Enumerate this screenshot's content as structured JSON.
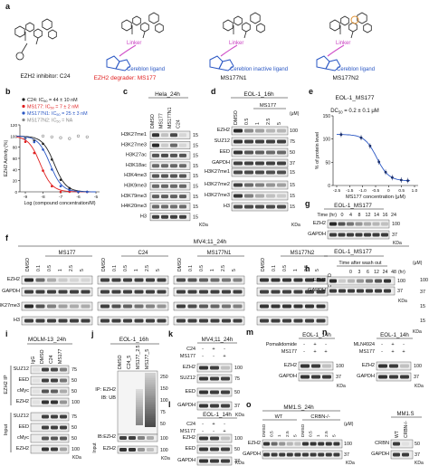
{
  "panels": {
    "a": {
      "letter": "a",
      "labels": {
        "c24": "EZH2 inhibitor: C24",
        "ms177": "EZH2 degrader: MS177",
        "ms177n1": "MS177N1",
        "ms177n2": "MS177N2"
      },
      "linker": "Linker",
      "cereblon": "Cereblon ligand",
      "cereblon_inactive": "Cereblon inactive ligand"
    },
    "b": {
      "letter": "b",
      "legend": [
        {
          "name": "C24",
          "text": "C24: IC",
          "tail": " = 44 ± 10 nM",
          "color": "#222222"
        },
        {
          "name": "MS177",
          "text": "MS177: IC",
          "tail": " = 7 ± 2 nM",
          "color": "#e02020"
        },
        {
          "name": "MS177N1",
          "text": "MS177N1: IC",
          "tail": " = 25 ± 3 nM",
          "color": "#2a57c4"
        },
        {
          "name": "MS177N2",
          "text": "MS177N2: IC",
          "tail": " = NA",
          "color": "#888888"
        }
      ],
      "sub50": "50",
      "ylabel": "EZH2 Activity (%)",
      "xlabel": "Log (compound concentration/M)",
      "yticks": [
        "0",
        "20",
        "40",
        "60",
        "80",
        "100",
        "120"
      ],
      "xticks": [
        "-9",
        "-8",
        "-7",
        "-6",
        "-5"
      ]
    },
    "c": {
      "letter": "c",
      "title": "Hela_24h",
      "lanes": [
        "DMSO",
        "MS177",
        "MS177N1",
        "C24"
      ],
      "rows": [
        "H3K27me1",
        "H3K27me3",
        "H3K27ac",
        "H3K18ac",
        "H3K4me3",
        "H3K9me3",
        "H3K79me3",
        "H4K20me3",
        "H3"
      ],
      "size": "15"
    },
    "d": {
      "letter": "d",
      "title": "EOL-1_16h",
      "group": "MS177",
      "unit": "(μM)",
      "lanes": [
        "DMSO",
        "0.5",
        "1",
        "2.5",
        "5"
      ],
      "rows": [
        "EZH2",
        "SUZ12",
        "EED",
        "GAPDH",
        "H3K27me1",
        "H3K27me2",
        "H3K27me3",
        "H3"
      ],
      "mw": [
        "100",
        "75",
        "50",
        "37",
        "15",
        "15",
        "15",
        "15"
      ]
    },
    "e": {
      "letter": "e",
      "title": "EOL-1_MS177",
      "dc50": "DC",
      "dc50sub": "50",
      "dc50tail": " = 0.2 ± 0.1 μM",
      "ylabel": "% of protein level",
      "xlabel": "MS177 concentration (μM)",
      "yticks": [
        "0",
        "50",
        "100",
        "150"
      ],
      "xticks": [
        "-2.5",
        "-1.5",
        "-1.0",
        "-0.5",
        "0",
        "0.5",
        "1.0"
      ]
    },
    "f": {
      "letter": "f",
      "title": "MV4;11_24h",
      "unit": "(μM)",
      "groups": [
        "MS177",
        "C24",
        "MS177N1",
        "MS177N2"
      ],
      "lanes": [
        "DMSO",
        "0.1",
        "0.5",
        "1",
        "2.5",
        "5"
      ],
      "rows": [
        "EZH2",
        "GAPDH",
        "H3K27me3",
        "H3"
      ],
      "mw": [
        "100",
        "37",
        "15",
        "15"
      ]
    },
    "g": {
      "letter": "g",
      "title": "EOL-1_MS177",
      "timelabel": "Time (hr)",
      "times": [
        "0",
        "4",
        "8",
        "12",
        "14",
        "16",
        "24"
      ],
      "rows": [
        "EZH2",
        "GAPDH"
      ],
      "mw": [
        "100",
        "37"
      ]
    },
    "h": {
      "letter": "h",
      "title": "EOL-1_MS177",
      "timelabel": "Time after wash out",
      "times": [
        "DMSO",
        "0",
        "3",
        "6",
        "12",
        "24",
        "48"
      ],
      "unit": "(hr)",
      "rows": [
        "EZH2",
        "GAPDH"
      ],
      "mw": [
        "100",
        "37"
      ]
    },
    "i": {
      "letter": "i",
      "title": "MOLM-13_24h",
      "lanes": [
        "IgG",
        "DMSO",
        "C24",
        "MS177"
      ],
      "rows": [
        "SUZ12",
        "EED",
        "cMyc",
        "EZH2",
        "SUZ12",
        "EED",
        "cMyc",
        "EZH2"
      ],
      "mw": [
        "75",
        "50",
        "50",
        "100",
        "75",
        "50",
        "50",
        "100"
      ],
      "ip": "EZH2 IP",
      "input": "Input"
    },
    "j": {
      "letter": "j",
      "title": "EOL-1_16h",
      "lanes": [
        "DMSO",
        "C24_5",
        "MS177_2.5",
        "MS177_5"
      ],
      "ip": "IP: EZH2",
      "ib": "IB: UB",
      "ibezh2": "IB:EZH2",
      "ezh2": "EZH2",
      "input": "Input",
      "mw": [
        "250",
        "150",
        "100",
        "75",
        "50",
        "100",
        "100"
      ]
    },
    "k": {
      "letter": "k",
      "title": "MV4;11_24h",
      "conds": [
        [
          "C24",
          "-",
          "+",
          "-"
        ],
        [
          "MS177",
          "-",
          "-",
          "+"
        ]
      ],
      "rows": [
        "EZH2",
        "SUZ12",
        "EED",
        "GAPDH"
      ],
      "mw": [
        "100",
        "75",
        "50",
        "37"
      ]
    },
    "l": {
      "letter": "l",
      "title": "EOL-1_14h",
      "conds": [
        [
          "C24",
          "-",
          "+",
          "-"
        ],
        [
          "MS177",
          "-",
          "-",
          "+"
        ]
      ],
      "rows": [
        "EZH2",
        "EED",
        "GAPDH"
      ],
      "mw": [
        "100",
        "50",
        "37"
      ]
    },
    "m": {
      "letter": "m",
      "title": "EOL-1_14h",
      "conds": [
        [
          "Pomalidomide",
          "-",
          "+",
          "-"
        ],
        [
          "MS177",
          "-",
          "+",
          "+"
        ]
      ],
      "rows": [
        "EZH2",
        "GAPDH"
      ],
      "mw": [
        "100",
        "37"
      ]
    },
    "n": {
      "letter": "n",
      "title": "EOL-1_14h",
      "conds": [
        [
          "MLN4924",
          "-",
          "+",
          "-"
        ],
        [
          "MS177",
          "-",
          "+",
          "+"
        ]
      ],
      "rows": [
        "EZH2",
        "GAPDH"
      ],
      "mw": [
        "100",
        "37"
      ]
    },
    "o": {
      "letter": "o",
      "title": "MM1.S_24h",
      "groups": [
        "WT",
        "CRBN-/-"
      ],
      "unit": "(μM)",
      "lanes": [
        "DMSO",
        "0.5",
        "1",
        "2.5",
        "5",
        "DMSO",
        "0.5",
        "1",
        "2.5",
        "5"
      ],
      "rows": [
        "EZH2",
        "GAPDH"
      ],
      "mw": [
        "100",
        "37"
      ],
      "side": {
        "title": "MM1.S",
        "lanes": [
          "WT",
          "CRBN-/-"
        ],
        "rows": [
          "CRBN",
          "GAPDH"
        ],
        "mw": [
          "50",
          "37"
        ]
      }
    },
    "common": {
      "kda": "KDa"
    }
  }
}
